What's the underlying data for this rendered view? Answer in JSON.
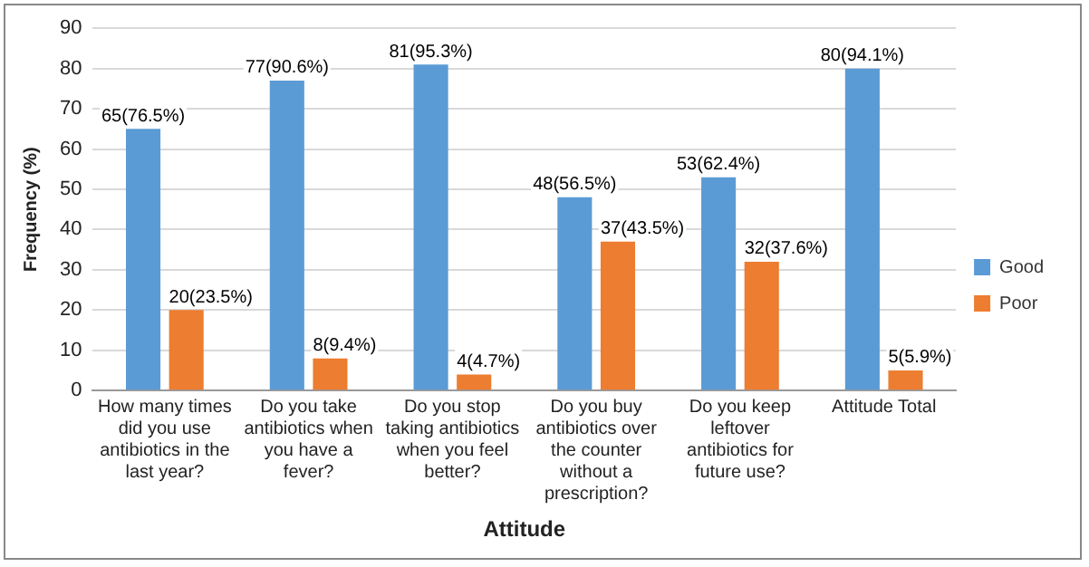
{
  "chart_data": {
    "type": "bar",
    "xlabel": "Attitude",
    "ylabel": "Frequency (%)",
    "categories": [
      "How many times did you use antibiotics in the last year?",
      "Do you take antibiotics when you have a fever?",
      "Do you stop taking antibiotics when you feel better?",
      "Do you buy antibiotics over the counter without a prescription?",
      "Do you keep leftover antibiotics for future use?",
      "Attitude Total"
    ],
    "series": [
      {
        "name": "Good",
        "color": "#5b9bd5",
        "values": [
          65,
          77,
          81,
          48,
          53,
          80
        ],
        "value_labels": [
          "65(76.5%)",
          "77(90.6%)",
          "81(95.3%)",
          "48(56.5%)",
          "53(62.4%)",
          "80(94.1%)"
        ]
      },
      {
        "name": "Poor",
        "color": "#ed7d31",
        "values": [
          20,
          8,
          4,
          37,
          32,
          5
        ],
        "value_labels": [
          "20(23.5%)",
          "8(9.4%)",
          "4(4.7%)",
          "37(43.5%)",
          "32(37.6%)",
          "5(5.9%)"
        ]
      }
    ],
    "ylim": [
      0,
      90
    ],
    "yticks": [
      0,
      10,
      20,
      30,
      40,
      50,
      60,
      70,
      80,
      90
    ],
    "grid": "y",
    "legend": "right"
  }
}
